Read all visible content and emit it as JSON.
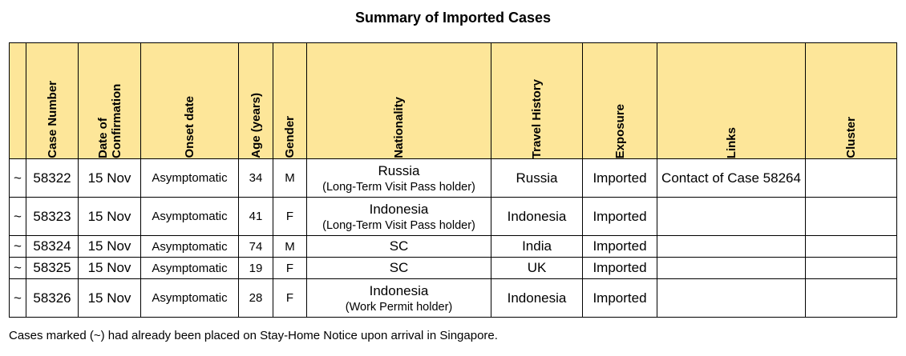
{
  "title": "Summary of Imported Cases",
  "headers": {
    "case_number": "Case Number",
    "date_of_confirmation": "Date of Confirmation",
    "onset_date": "Onset date",
    "age": "Age (years)",
    "gender": "Gender",
    "nationality": "Nationality",
    "travel_history": "Travel History",
    "exposure": "Exposure",
    "links": "Links",
    "cluster": "Cluster"
  },
  "rows": [
    {
      "marker": "~",
      "case": "58322",
      "date": "15 Nov",
      "onset": "Asymptomatic",
      "age": "34",
      "gender": "M",
      "nationality": "Russia",
      "nationality_note": "(Long-Term Visit Pass holder)",
      "travel": "Russia",
      "exposure": "Imported",
      "links": "Contact of Case 58264",
      "cluster": ""
    },
    {
      "marker": "~",
      "case": "58323",
      "date": "15 Nov",
      "onset": "Asymptomatic",
      "age": "41",
      "gender": "F",
      "nationality": "Indonesia",
      "nationality_note": "(Long-Term Visit Pass holder)",
      "travel": "Indonesia",
      "exposure": "Imported",
      "links": "",
      "cluster": ""
    },
    {
      "marker": "~",
      "case": "58324",
      "date": "15 Nov",
      "onset": "Asymptomatic",
      "age": "74",
      "gender": "M",
      "nationality": "SC",
      "nationality_note": "",
      "travel": "India",
      "exposure": "Imported",
      "links": "",
      "cluster": ""
    },
    {
      "marker": "~",
      "case": "58325",
      "date": "15 Nov",
      "onset": "Asymptomatic",
      "age": "19",
      "gender": "F",
      "nationality": "SC",
      "nationality_note": "",
      "travel": "UK",
      "exposure": "Imported",
      "links": "",
      "cluster": ""
    },
    {
      "marker": "~",
      "case": "58326",
      "date": "15 Nov",
      "onset": "Asymptomatic",
      "age": "28",
      "gender": "F",
      "nationality": "Indonesia",
      "nationality_note": "(Work Permit holder)",
      "travel": "Indonesia",
      "exposure": "Imported",
      "links": "",
      "cluster": ""
    }
  ],
  "footnote": "Cases marked (~) had already been placed on Stay-Home Notice upon arrival in Singapore.",
  "colors": {
    "header_bg": "#fde699",
    "border": "#000000"
  }
}
